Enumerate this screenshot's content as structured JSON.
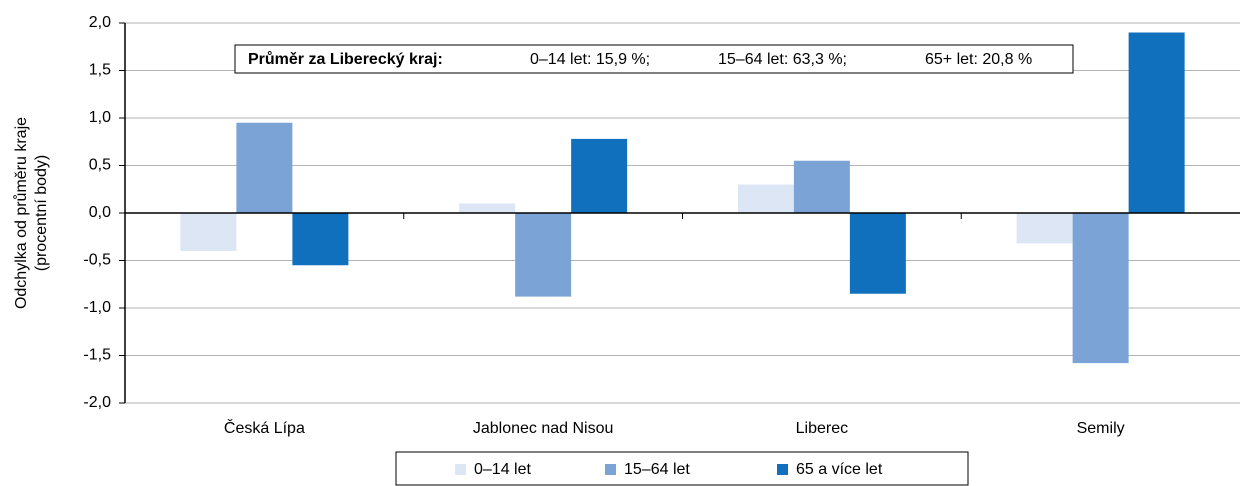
{
  "chart_data": {
    "type": "bar",
    "y_label": [
      "Odchylka od průměru kraje",
      "(procentní body)"
    ],
    "annotation": {
      "title": "Průměr za Liberecký kraj:",
      "items": [
        "0–14 let: 15,9 %;",
        "15–64 let: 63,3 %;",
        "65+ let: 20,8 %"
      ]
    },
    "categories": [
      "Česká Lípa",
      "Jablonec nad Nisou",
      "Liberec",
      "Semily"
    ],
    "series": [
      {
        "name": "0–14 let",
        "color": "#dde6f5",
        "values": [
          -0.4,
          0.1,
          0.3,
          -0.32
        ]
      },
      {
        "name": "15–64 let",
        "color": "#7ba3d6",
        "values": [
          0.95,
          -0.88,
          0.55,
          -1.58
        ]
      },
      {
        "name": "65 a více let",
        "color": "#1170bd",
        "values": [
          -0.55,
          0.78,
          -0.85,
          1.9
        ]
      }
    ],
    "ylim": [
      -2,
      2
    ],
    "yticks": [
      {
        "value": -2,
        "label": "-2,0"
      },
      {
        "value": -1.5,
        "label": "-1,5"
      },
      {
        "value": -1,
        "label": "-1,0"
      },
      {
        "value": -0.5,
        "label": "-0,5"
      },
      {
        "value": 0,
        "label": "0,0"
      },
      {
        "value": 0.5,
        "label": "0,5"
      },
      {
        "value": 1,
        "label": "1,0"
      },
      {
        "value": 1.5,
        "label": "1,5"
      },
      {
        "value": 2,
        "label": "2,0"
      }
    ],
    "grid": true,
    "legend": "bottom"
  }
}
